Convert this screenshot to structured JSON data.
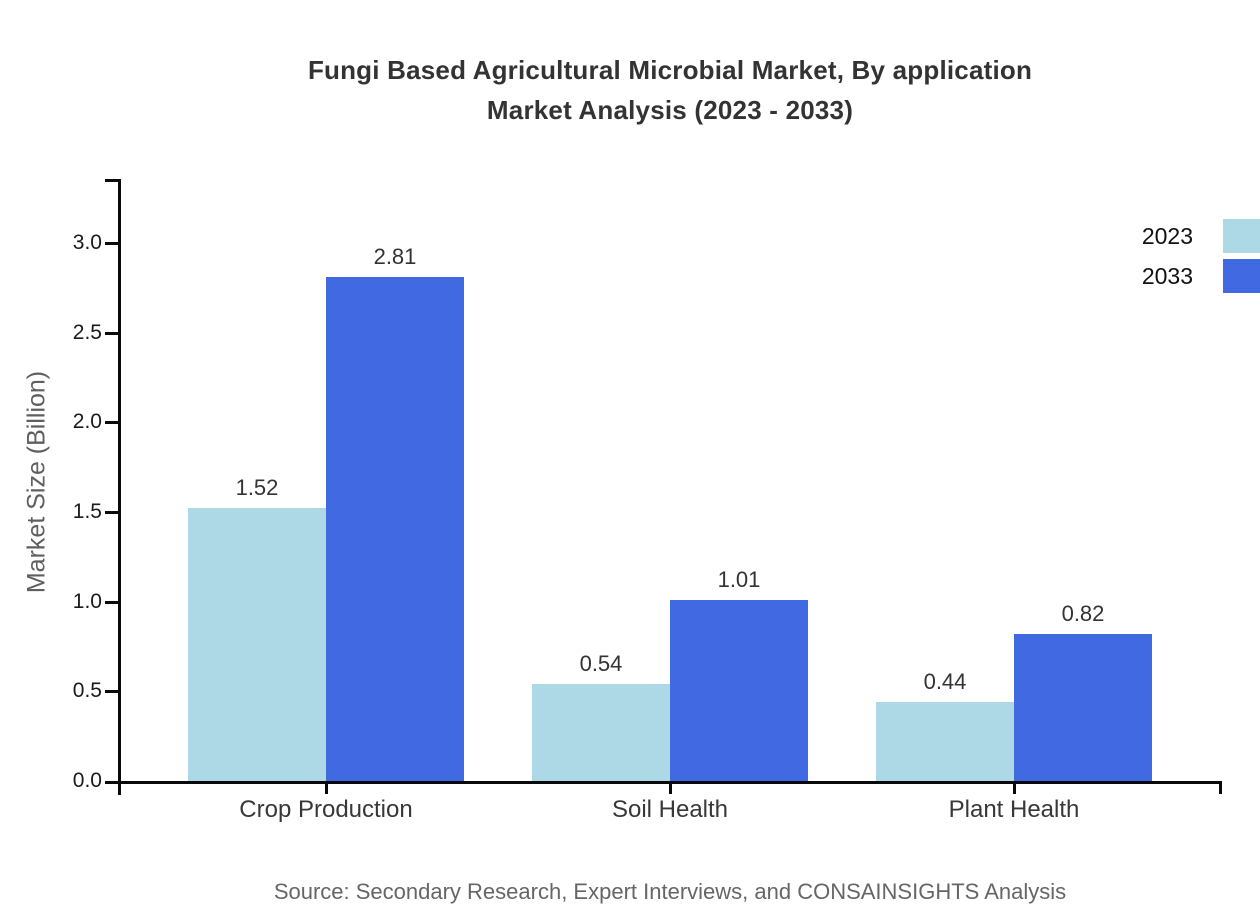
{
  "title": {
    "line1": "Fungi Based Agricultural Microbial Market, By application",
    "line2": "Market Analysis (2023 - 2033)"
  },
  "source": "Source: Secondary Research, Expert Interviews, and CONSAINSIGHTS Analysis",
  "colors": {
    "series_2023": "#ADD8E6",
    "series_2033": "#4169E1",
    "axis": "#0a0a0a",
    "title_text": "#333333",
    "muted_text": "#666666"
  },
  "chart_data": {
    "type": "bar",
    "title": "Fungi Based Agricultural Microbial Market, By application Market Analysis (2023 - 2033)",
    "categories": [
      "Crop Production",
      "Soil Health",
      "Plant Health"
    ],
    "series": [
      {
        "name": "2023",
        "color": "#ADD8E6",
        "values": [
          1.52,
          0.54,
          0.44
        ]
      },
      {
        "name": "2033",
        "color": "#4169E1",
        "values": [
          2.81,
          1.01,
          0.82
        ]
      }
    ],
    "xlabel": "",
    "ylabel": "Market Size (Billion)",
    "ylim": [
      0,
      3.36
    ],
    "yticks": [
      0.0,
      0.5,
      1.0,
      1.5,
      2.0,
      2.5,
      3.0
    ],
    "ytick_format_decimals": 1,
    "value_label_decimals": 2,
    "grid": false,
    "legend_position": "top-right",
    "value_labels": true
  },
  "legend": {
    "items": [
      {
        "label": "2023",
        "color": "#ADD8E6"
      },
      {
        "label": "2033",
        "color": "#4169E1"
      }
    ]
  }
}
